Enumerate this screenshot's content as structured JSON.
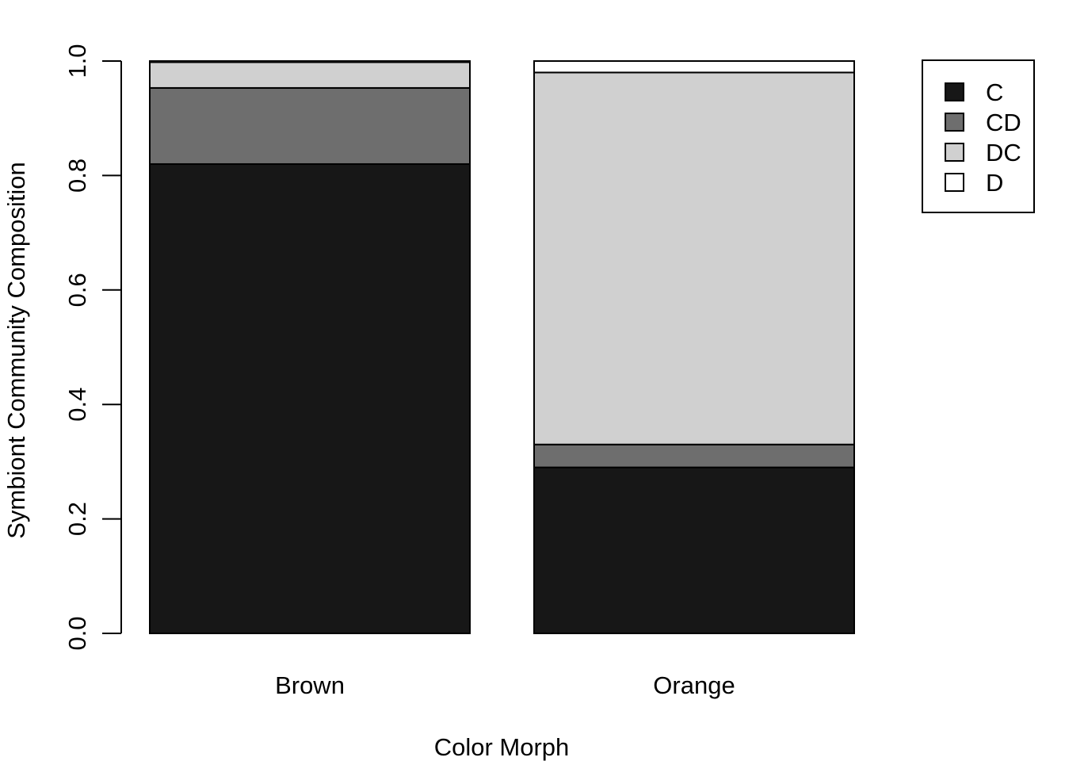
{
  "chart_data": {
    "type": "bar",
    "stacked": true,
    "categories": [
      "Brown",
      "Orange"
    ],
    "series": [
      {
        "name": "C",
        "values": [
          0.82,
          0.29
        ]
      },
      {
        "name": "CD",
        "values": [
          0.133,
          0.04
        ]
      },
      {
        "name": "DC",
        "values": [
          0.045,
          0.65
        ]
      },
      {
        "name": "D",
        "values": [
          0.002,
          0.02
        ]
      }
    ],
    "series_colors": [
      "#171717",
      "#6e6e6e",
      "#d0d0d0",
      "#ffffff"
    ],
    "xlabel": "Color Morph",
    "ylabel": "Symbiont Community Composition",
    "ylim": [
      0,
      1.0
    ],
    "yticks": [
      "0.0",
      "0.2",
      "0.4",
      "0.6",
      "0.8",
      "1.0"
    ],
    "legend_position": "top-right",
    "grid": false
  }
}
